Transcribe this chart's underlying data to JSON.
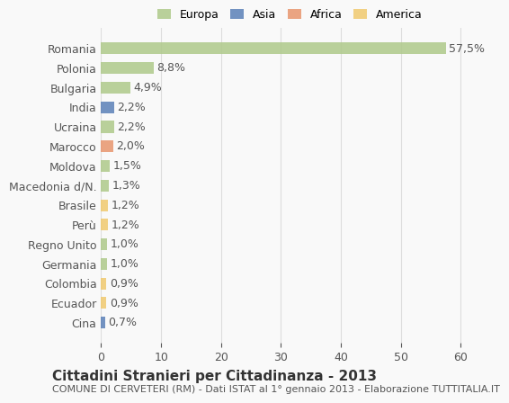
{
  "categories": [
    "Romania",
    "Polonia",
    "Bulgaria",
    "India",
    "Ucraina",
    "Marocco",
    "Moldova",
    "Macedonia d/N.",
    "Brasile",
    "Perù",
    "Regno Unito",
    "Germania",
    "Colombia",
    "Ecuador",
    "Cina"
  ],
  "values": [
    57.5,
    8.8,
    4.9,
    2.2,
    2.2,
    2.0,
    1.5,
    1.3,
    1.2,
    1.2,
    1.0,
    1.0,
    0.9,
    0.9,
    0.7
  ],
  "labels": [
    "57,5%",
    "8,8%",
    "4,9%",
    "2,2%",
    "2,2%",
    "2,0%",
    "1,5%",
    "1,3%",
    "1,2%",
    "1,2%",
    "1,0%",
    "1,0%",
    "0,9%",
    "0,9%",
    "0,7%"
  ],
  "colors": [
    "#aec98a",
    "#aec98a",
    "#aec98a",
    "#5b80b8",
    "#aec98a",
    "#e8956d",
    "#aec98a",
    "#aec98a",
    "#f0c96e",
    "#f0c96e",
    "#aec98a",
    "#aec98a",
    "#f0c96e",
    "#f0c96e",
    "#5b80b8"
  ],
  "legend_labels": [
    "Europa",
    "Asia",
    "Africa",
    "America"
  ],
  "legend_colors": [
    "#aec98a",
    "#5b80b8",
    "#e8956d",
    "#f0c96e"
  ],
  "title": "Cittadini Stranieri per Cittadinanza - 2013",
  "subtitle": "COMUNE DI CERVETERI (RM) - Dati ISTAT al 1° gennaio 2013 - Elaborazione TUTTITALIA.IT",
  "xlim": [
    0,
    63
  ],
  "xticks": [
    0,
    10,
    20,
    30,
    40,
    50,
    60
  ],
  "background_color": "#f9f9f9",
  "grid_color": "#dddddd",
  "bar_height": 0.6,
  "label_fontsize": 9,
  "tick_fontsize": 9,
  "title_fontsize": 11,
  "subtitle_fontsize": 8
}
